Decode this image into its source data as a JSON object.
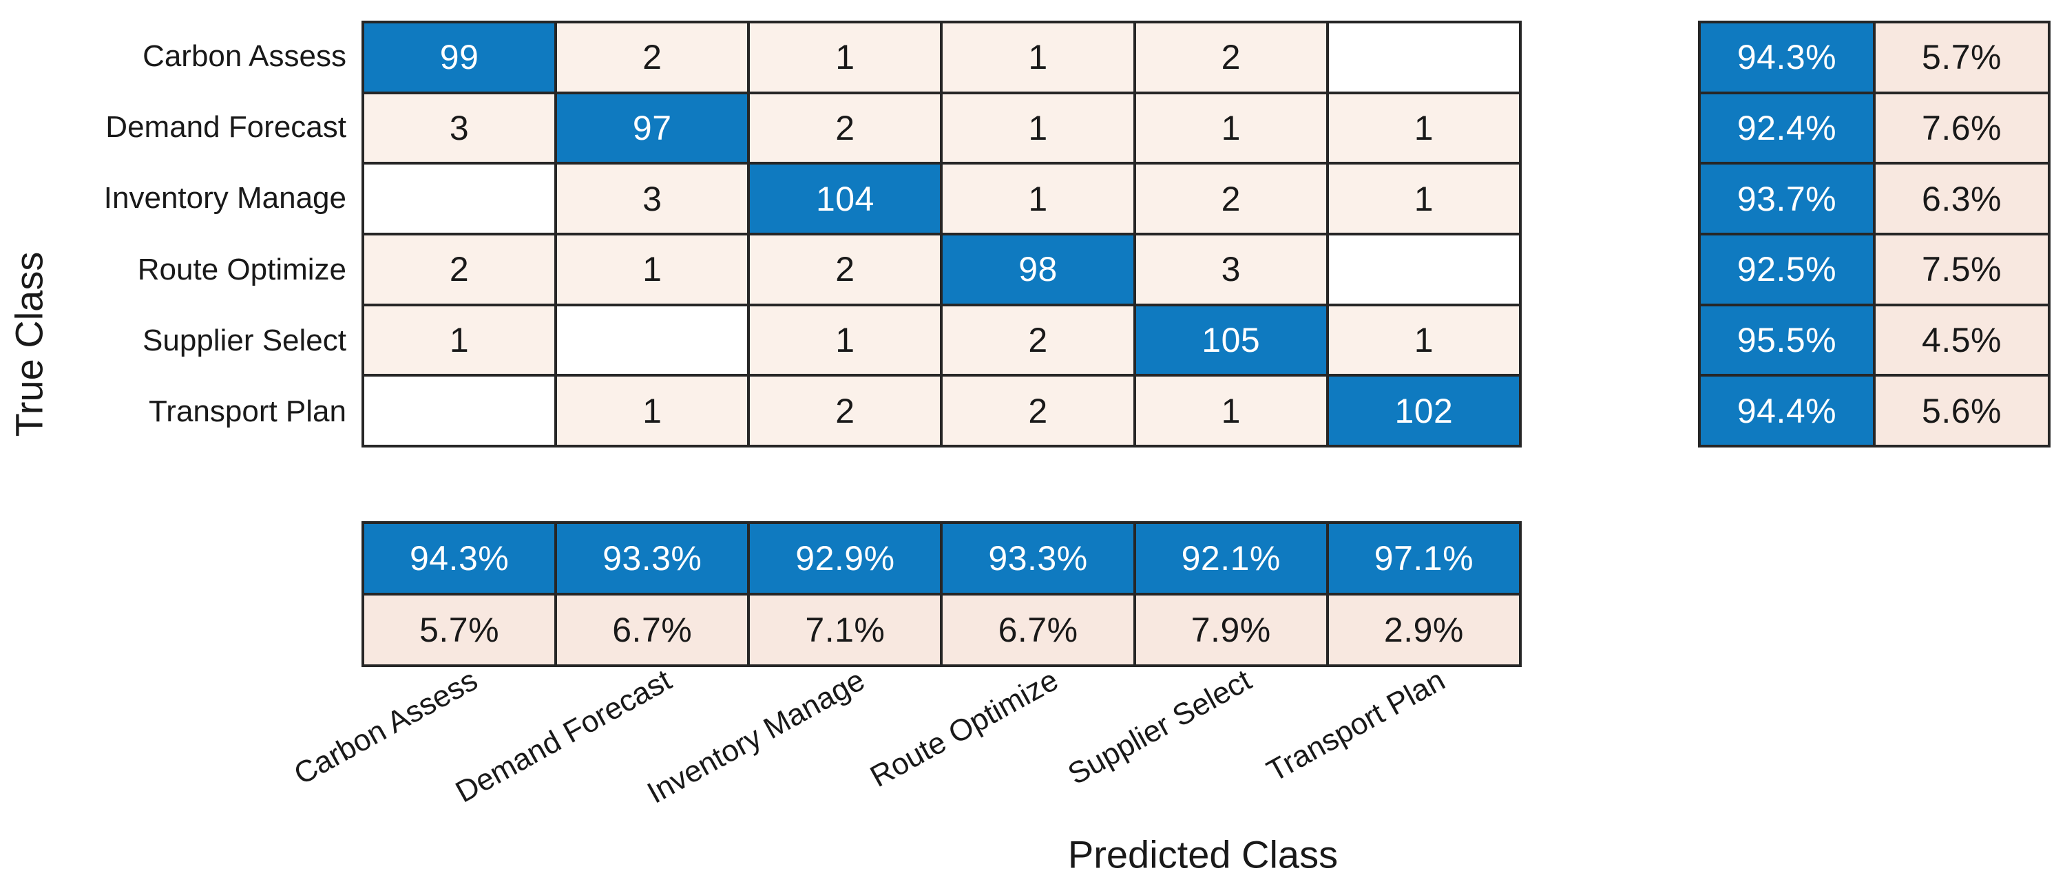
{
  "chart_data": {
    "type": "heatmap",
    "subtype": "confusion-matrix",
    "title": "",
    "xlabel": "Predicted Class",
    "ylabel": "True Class",
    "classes": [
      "Carbon Assess",
      "Demand Forecast",
      "Inventory Manage",
      "Route Optimize",
      "Supplier Select",
      "Transport Plan"
    ],
    "matrix": [
      [
        99,
        2,
        1,
        1,
        2,
        null
      ],
      [
        3,
        97,
        2,
        1,
        1,
        1
      ],
      [
        null,
        3,
        104,
        1,
        2,
        1
      ],
      [
        2,
        1,
        2,
        98,
        3,
        null
      ],
      [
        1,
        null,
        1,
        2,
        105,
        1
      ],
      [
        null,
        1,
        2,
        2,
        1,
        102
      ]
    ],
    "row_summary": {
      "tpr": [
        "94.3%",
        "92.4%",
        "93.7%",
        "92.5%",
        "95.5%",
        "94.4%"
      ],
      "fnr": [
        "5.7%",
        "7.6%",
        "6.3%",
        "7.5%",
        "4.5%",
        "5.6%"
      ]
    },
    "col_summary": {
      "ppv": [
        "94.3%",
        "93.3%",
        "92.9%",
        "93.3%",
        "92.1%",
        "97.1%"
      ],
      "fdr": [
        "5.7%",
        "6.7%",
        "7.1%",
        "6.7%",
        "7.9%",
        "2.9%"
      ]
    },
    "layout_hints": {
      "grid": "on",
      "row_summary_position": "right",
      "col_summary_position": "bottom",
      "x_tick_rotation_deg": -29
    }
  },
  "colors": {
    "diagonal_blue": "#0f7ac0",
    "off_diagonal_pink": "#fbf1ea",
    "summary_pink": "#f8e8e0",
    "zero_cell_white": "#ffffff",
    "grid_line": "#262626",
    "text_on_blue": "#ffffff",
    "text_dark": "#191919"
  }
}
